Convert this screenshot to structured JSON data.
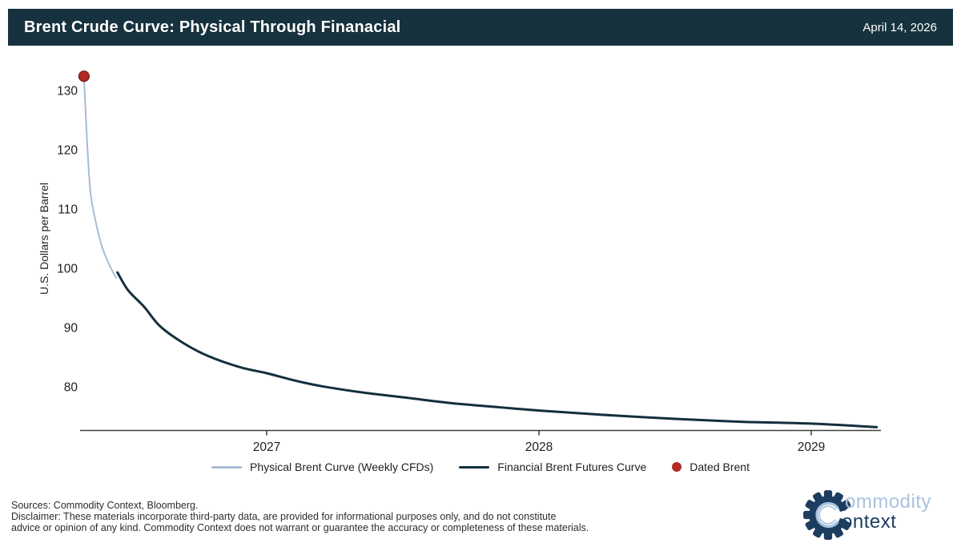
{
  "header": {
    "title": "Brent Crude Curve: Physical Through Finanacial",
    "date": "April 14, 2026",
    "bg_color": "#16323e",
    "text_color": "#ffffff"
  },
  "chart_data": {
    "type": "line",
    "title": "Brent Crude Curve: Physical Through Finanacial",
    "xlabel": "",
    "ylabel": "U.S. Dollars per Barrel",
    "xlim": [
      2026.31,
      2029.26
    ],
    "ylim": [
      72.5,
      134
    ],
    "x_ticks": [
      "2027",
      "2028",
      "2029"
    ],
    "x_tick_values": [
      2027,
      2028,
      2029
    ],
    "y_ticks": [
      "130",
      "120",
      "110",
      "100",
      "90",
      "80"
    ],
    "y_tick_values": [
      130,
      120,
      110,
      100,
      90,
      80
    ],
    "grid": false,
    "legend_position": "bottom",
    "axis_color": "#3f3f3f",
    "series": [
      {
        "name": "Physical Brent Curve (Weekly CFDs)",
        "kind": "line",
        "color": "#a8bdd3",
        "stroke_width": 2,
        "points": [
          {
            "x": 2026.329,
            "y": 132.4
          },
          {
            "x": 2026.341,
            "y": 121.0
          },
          {
            "x": 2026.353,
            "y": 112.8
          },
          {
            "x": 2026.374,
            "y": 107.4
          },
          {
            "x": 2026.397,
            "y": 103.4
          },
          {
            "x": 2026.424,
            "y": 100.4
          },
          {
            "x": 2026.447,
            "y": 98.4
          }
        ]
      },
      {
        "name": "Financial Brent Futures Curve",
        "kind": "line",
        "color": "#142f3d",
        "stroke_width": 3,
        "points": [
          {
            "x": 2026.452,
            "y": 99.3
          },
          {
            "x": 2026.491,
            "y": 96.3
          },
          {
            "x": 2026.55,
            "y": 93.5
          },
          {
            "x": 2026.609,
            "y": 90.2
          },
          {
            "x": 2026.697,
            "y": 87.3
          },
          {
            "x": 2026.785,
            "y": 85.2
          },
          {
            "x": 2026.903,
            "y": 83.3
          },
          {
            "x": 2027.0,
            "y": 82.3
          },
          {
            "x": 2027.109,
            "y": 81.0
          },
          {
            "x": 2027.203,
            "y": 80.1
          },
          {
            "x": 2027.359,
            "y": 79.0
          },
          {
            "x": 2027.506,
            "y": 78.2
          },
          {
            "x": 2027.668,
            "y": 77.3
          },
          {
            "x": 2027.815,
            "y": 76.7
          },
          {
            "x": 2028.0,
            "y": 76.0
          },
          {
            "x": 2028.226,
            "y": 75.3
          },
          {
            "x": 2028.5,
            "y": 74.6
          },
          {
            "x": 2028.75,
            "y": 74.1
          },
          {
            "x": 2029.0,
            "y": 73.8
          },
          {
            "x": 2029.24,
            "y": 73.2
          }
        ]
      },
      {
        "name": "Dated Brent",
        "kind": "point",
        "color": "#b02a26",
        "edge_color": "#7d1d1a",
        "marker_radius": 6.5,
        "points": [
          {
            "x": 2026.329,
            "y": 132.4
          }
        ]
      }
    ]
  },
  "legend": {
    "items": [
      {
        "label": "Physical Brent Curve (Weekly CFDs)",
        "swatch": "line",
        "color": "#a8bdd3"
      },
      {
        "label": "Financial Brent Futures Curve",
        "swatch": "line",
        "color": "#142f3d"
      },
      {
        "label": "Dated Brent",
        "swatch": "dot",
        "color": "#b02a26"
      }
    ]
  },
  "footer": {
    "sources": "Sources: Commodity Context, Bloomberg.",
    "disclaimer_line1": "Disclaimer: These materials incorporate third-party data, are provided for informational purposes only, and do not constitute",
    "disclaimer_line2": "advice or opinion of any kind. Commodity Context does not warrant or guarantee the accuracy or completeness of these materials."
  },
  "logo": {
    "line1": "ommodity",
    "line2": "ontext",
    "monogram": "C",
    "light_color": "#a8c3de",
    "dark_color": "#1d3d60"
  }
}
